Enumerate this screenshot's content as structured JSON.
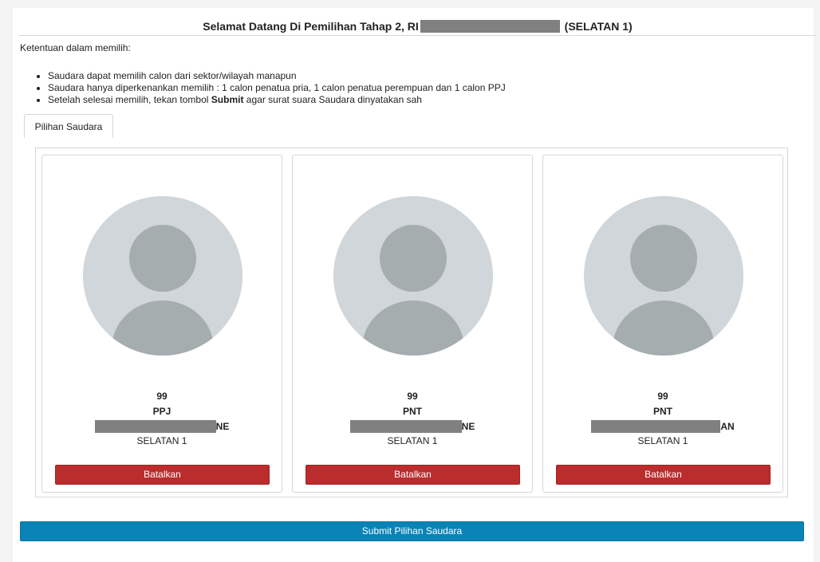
{
  "header": {
    "title_prefix": "Selamat Datang Di Pemilihan Tahap 2, RI",
    "title_suffix": "(SELATAN 1)"
  },
  "rules": {
    "title": "Ketentuan dalam memilih:",
    "item1": "Saudara dapat memilih calon dari sektor/wilayah manapun",
    "item2": "Saudara hanya diperkenankan memilih : 1 calon penatua pria, 1 calon penatua perempuan dan 1 calon PPJ",
    "item3_before": "Setelah selesai memilih, tekan tombol",
    "item3_bold": "Submit",
    "item3_after": "agar surat suara Saudara dinyatakan sah"
  },
  "tab": {
    "label": "Pilihan Saudara"
  },
  "cards": [
    {
      "number": "99",
      "role": "PPJ",
      "name_visible": "NE",
      "region": "SELATAN 1",
      "cancel_label": "Batalkan"
    },
    {
      "number": "99",
      "role": "PNT",
      "name_visible": "NE",
      "region": "SELATAN 1",
      "cancel_label": "Batalkan"
    },
    {
      "number": "99",
      "role": "PNT",
      "name_visible": "AN",
      "region": "SELATAN 1",
      "cancel_label": "Batalkan"
    }
  ],
  "submit": {
    "label": "Submit Pilihan Saudara"
  },
  "colors": {
    "cancel": "#bb2c2d",
    "submit": "#0a84b7",
    "redaction": "#808080",
    "avatar_bg": "#d0d6d9",
    "avatar_fg": "#a6adaf"
  }
}
